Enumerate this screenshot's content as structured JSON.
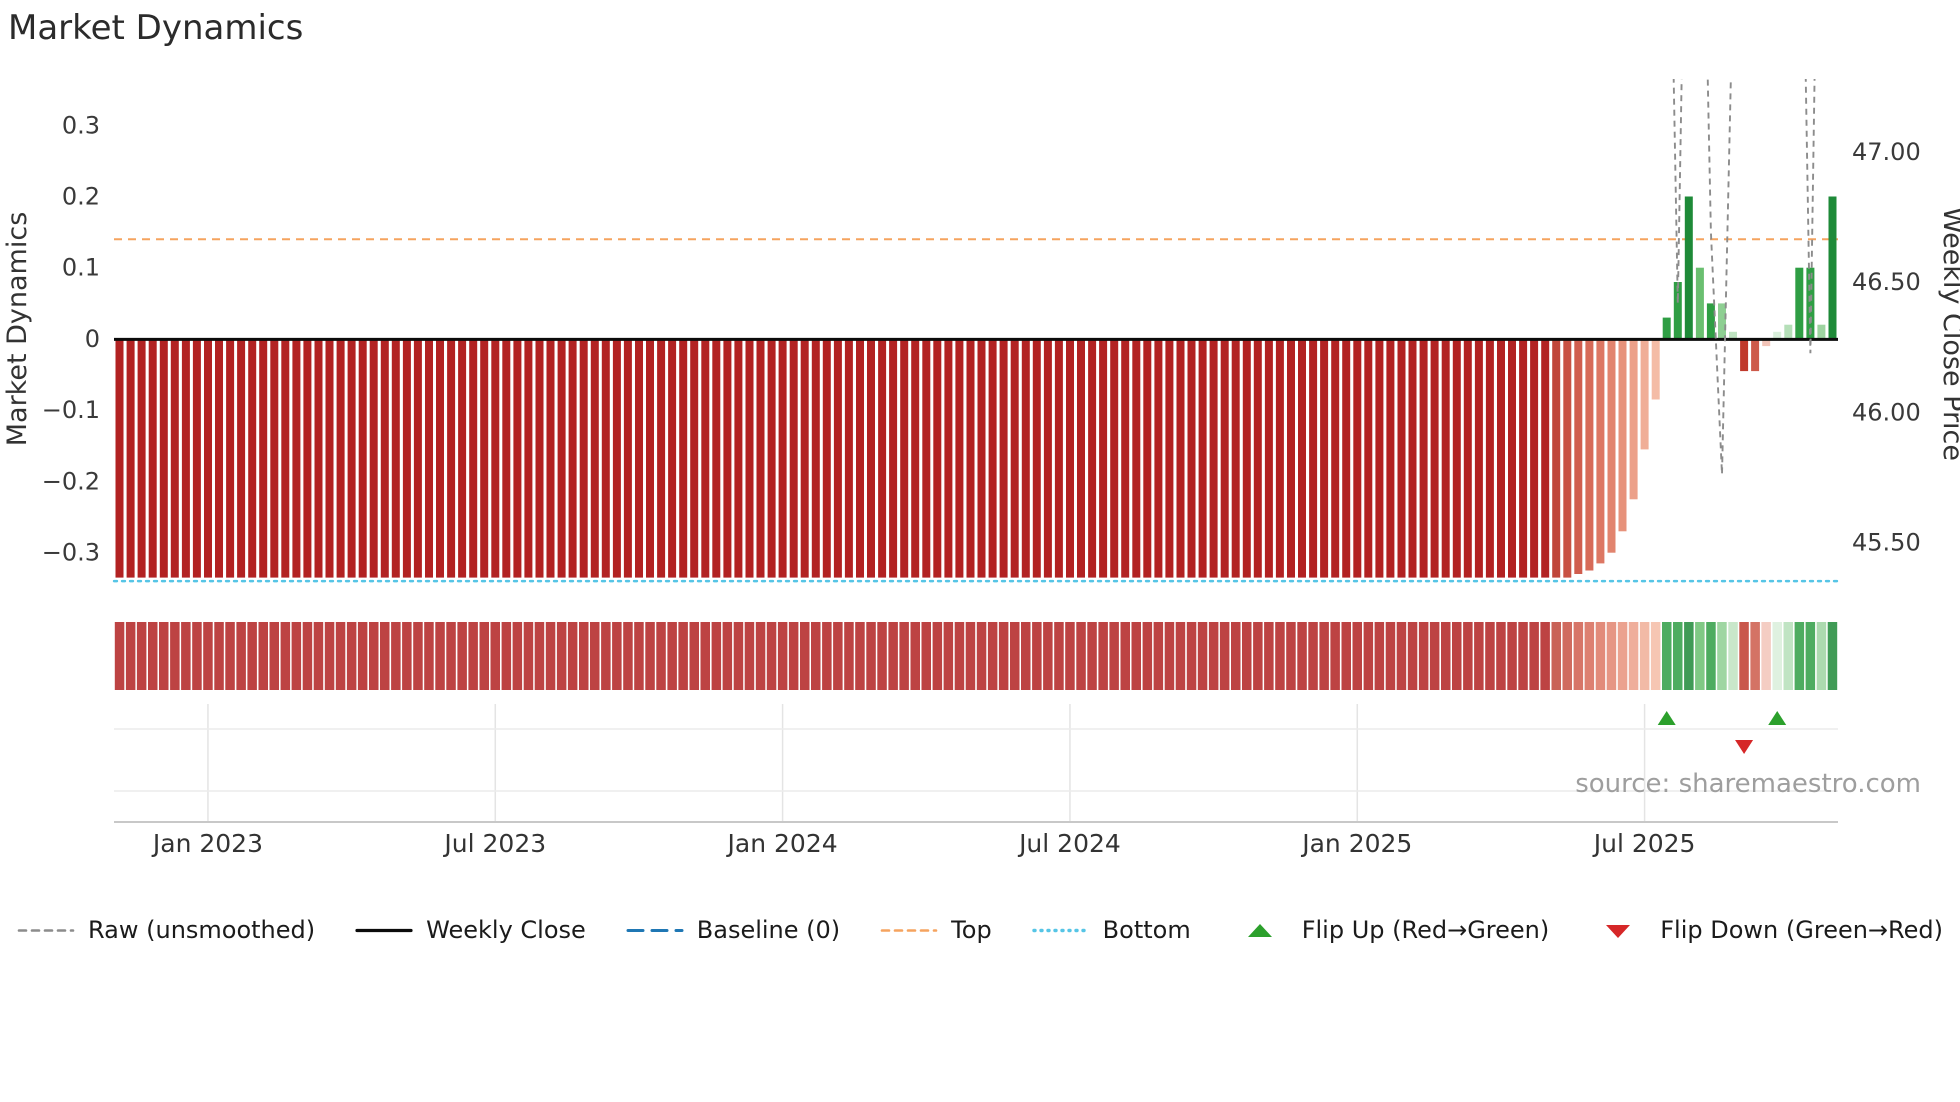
{
  "title": "Market Dynamics",
  "source_note": "source: sharemaestro.com",
  "legend": {
    "items": [
      {
        "label": "Raw (unsmoothed)",
        "type": "line-dashed",
        "color": "#8c8c8c"
      },
      {
        "label": "Weekly Close",
        "type": "line-solid",
        "color": "#0b0b0b"
      },
      {
        "label": "Baseline (0)",
        "type": "line-longdash",
        "color": "#1f77b4"
      },
      {
        "label": "Top",
        "type": "line-dashed",
        "color": "#f5a35f"
      },
      {
        "label": "Bottom",
        "type": "line-dotted",
        "color": "#56c5e6"
      },
      {
        "label": "Flip Up (Red→Green)",
        "type": "triangle-up",
        "color": "#2ca02c"
      },
      {
        "label": "Flip Down (Green→Red)",
        "type": "triangle-down",
        "color": "#d62728"
      }
    ]
  },
  "chart_data": {
    "type": "bar",
    "title": "Market Dynamics",
    "n_weeks": 156,
    "x_axis": {
      "ticks": [
        {
          "label": "Jan 2023",
          "week": 8
        },
        {
          "label": "Jul 2023",
          "week": 34
        },
        {
          "label": "Jan 2024",
          "week": 60
        },
        {
          "label": "Jul 2024",
          "week": 86
        },
        {
          "label": "Jan 2025",
          "week": 112
        },
        {
          "label": "Jul 2025",
          "week": 138
        }
      ]
    },
    "left_axis": {
      "label": "Market Dynamics",
      "range": [
        -0.337,
        0.365
      ],
      "ticks": [
        {
          "label": "0.3",
          "value": 0.3
        },
        {
          "label": "0.2",
          "value": 0.2
        },
        {
          "label": "0.1",
          "value": 0.1
        },
        {
          "label": "0",
          "value": 0
        },
        {
          "label": "−0.1",
          "value": -0.1
        },
        {
          "label": "−0.2",
          "value": -0.2
        },
        {
          "label": "−0.3",
          "value": -0.3
        }
      ]
    },
    "right_axis": {
      "label": "Weekly Close Price",
      "range": [
        45.36,
        47.28
      ],
      "ticks": [
        {
          "label": "47.00",
          "value": 47.0
        },
        {
          "label": "46.50",
          "value": 46.5
        },
        {
          "label": "46.00",
          "value": 46.0
        },
        {
          "label": "45.50",
          "value": 45.5
        }
      ]
    },
    "reference_lines": {
      "top": 0.14,
      "bottom": -0.34,
      "baseline": 0,
      "weekly_close_price": 46.28
    },
    "default_bar": {
      "value": -0.335,
      "color": "#b22222"
    },
    "bar_overrides": [
      {
        "week": 130,
        "value": -0.335,
        "color": "#c0463a"
      },
      {
        "week": 131,
        "value": -0.335,
        "color": "#c85143"
      },
      {
        "week": 132,
        "value": -0.33,
        "color": "#d05d4e"
      },
      {
        "week": 133,
        "value": -0.325,
        "color": "#d76a58"
      },
      {
        "week": 134,
        "value": -0.315,
        "color": "#dd7763"
      },
      {
        "week": 135,
        "value": -0.3,
        "color": "#e2846e"
      },
      {
        "week": 136,
        "value": -0.27,
        "color": "#e7927b"
      },
      {
        "week": 137,
        "value": -0.225,
        "color": "#eca089"
      },
      {
        "week": 138,
        "value": -0.155,
        "color": "#f0ae97"
      },
      {
        "week": 139,
        "value": -0.085,
        "color": "#f4bca6"
      },
      {
        "week": 140,
        "value": 0.03,
        "color": "#2f9e44"
      },
      {
        "week": 141,
        "value": 0.08,
        "color": "#2f9e44"
      },
      {
        "week": 142,
        "value": 0.2,
        "color": "#1e8a38"
      },
      {
        "week": 143,
        "value": 0.1,
        "color": "#6abf70"
      },
      {
        "week": 144,
        "value": 0.05,
        "color": "#2f9e44"
      },
      {
        "week": 145,
        "value": 0.05,
        "color": "#8ecf92"
      },
      {
        "week": 146,
        "value": 0.01,
        "color": "#bfe3c1"
      },
      {
        "week": 147,
        "value": -0.045,
        "color": "#c0392b"
      },
      {
        "week": 148,
        "value": -0.045,
        "color": "#cd5a4a"
      },
      {
        "week": 149,
        "value": -0.01,
        "color": "#f2c4b8"
      },
      {
        "week": 150,
        "value": 0.01,
        "color": "#d9efdb"
      },
      {
        "week": 151,
        "value": 0.02,
        "color": "#b5dfb8"
      },
      {
        "week": 152,
        "value": 0.1,
        "color": "#2f9e44"
      },
      {
        "week": 153,
        "value": 0.1,
        "color": "#2f9e44"
      },
      {
        "week": 154,
        "value": 0.02,
        "color": "#9ed4a1"
      },
      {
        "week": 155,
        "value": 0.2,
        "color": "#1e8a38"
      }
    ],
    "raw_series": {
      "name": "Raw (unsmoothed)",
      "points": [
        {
          "week": 138,
          "value": 1.0
        },
        {
          "week": 139,
          "value": 1.0
        },
        {
          "week": 140,
          "value": 0.9
        },
        {
          "week": 141,
          "value": 0.05
        },
        {
          "week": 142,
          "value": 0.95
        },
        {
          "week": 143,
          "value": 0.9
        },
        {
          "week": 144,
          "value": 0.15
        },
        {
          "week": 145,
          "value": -0.19
        },
        {
          "week": 146,
          "value": 0.5
        },
        {
          "week": 147,
          "value": 1.1
        },
        {
          "week": 148,
          "value": 1.0
        },
        {
          "week": 149,
          "value": 1.1
        },
        {
          "week": 150,
          "value": 1.0
        },
        {
          "week": 151,
          "value": 1.1
        },
        {
          "week": 152,
          "value": 0.9
        },
        {
          "week": 153,
          "value": -0.02
        },
        {
          "week": 154,
          "value": 1.0
        },
        {
          "week": 155,
          "value": 0.5
        }
      ]
    },
    "flip_markers": {
      "up_weeks": [
        140,
        150
      ],
      "down_weeks": [
        147
      ]
    }
  }
}
